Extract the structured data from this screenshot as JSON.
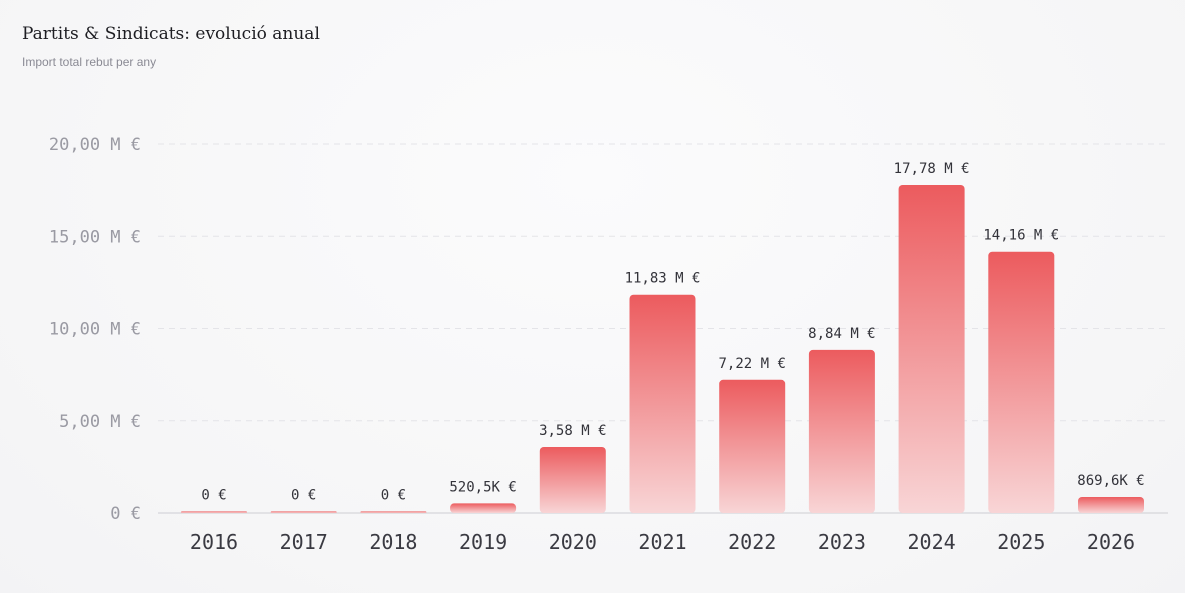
{
  "header": {
    "title": "Partits & Sindicats: evolució anual",
    "subtitle": "Import total rebut per any"
  },
  "colors": {
    "bar_top": "#ec5b5e",
    "bar_bottom": "#f8d5d6"
  },
  "chart_data": {
    "type": "bar",
    "title": "Partits & Sindicats: evolució anual",
    "subtitle": "Import total rebut per any",
    "xlabel": "",
    "ylabel": "",
    "categories": [
      "2016",
      "2017",
      "2018",
      "2019",
      "2020",
      "2021",
      "2022",
      "2023",
      "2024",
      "2025",
      "2026"
    ],
    "values": [
      0,
      0,
      0,
      520500,
      3580000,
      11830000,
      7220000,
      8840000,
      17780000,
      14160000,
      869600
    ],
    "data_labels": [
      "0 €",
      "0 €",
      "0 €",
      "520,5K €",
      "3,58 M €",
      "11,83 M €",
      "7,22 M €",
      "8,84 M €",
      "17,78 M €",
      "14,16 M €",
      "869,6K €"
    ],
    "ylim": [
      0,
      20000000
    ],
    "yticks": [
      0,
      5000000,
      10000000,
      15000000,
      20000000
    ],
    "ytick_labels": [
      "0 €",
      "5,00 M €",
      "10,00 M €",
      "15,00 M €",
      "20,00 M €"
    ],
    "grid": true,
    "legend": "none"
  }
}
